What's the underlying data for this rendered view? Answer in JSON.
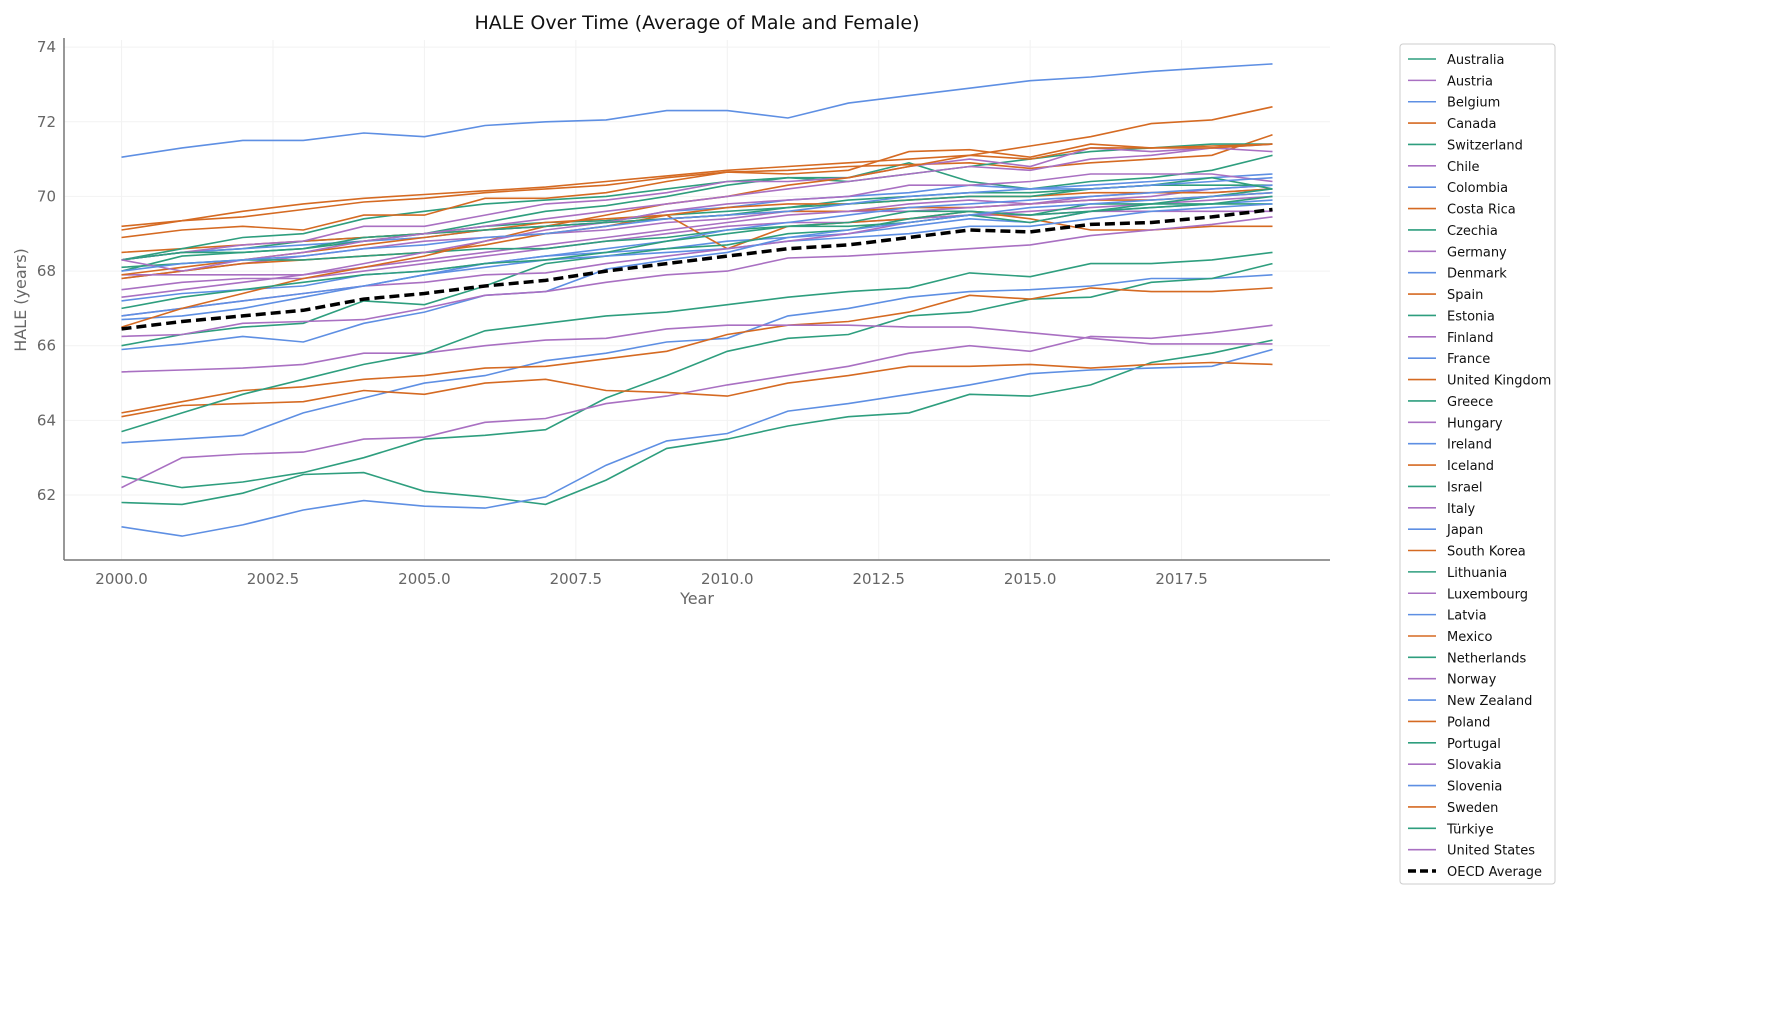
{
  "chart_data": {
    "type": "line",
    "title": "HALE Over Time (Average of Male and Female)",
    "xlabel": "Year",
    "ylabel": "HALE (years)",
    "xlim": [
      1999.05,
      2019.95
    ],
    "ylim": [
      60.26,
      74.19
    ],
    "xticks": [
      "2000.0",
      "2002.5",
      "2005.0",
      "2007.5",
      "2010.0",
      "2012.5",
      "2015.0",
      "2017.5"
    ],
    "yticks": [
      "62",
      "64",
      "66",
      "68",
      "70",
      "72",
      "74"
    ],
    "grid": true,
    "legend_placement": "outside-right",
    "palette": [
      "#2e9e7e",
      "#a970c2",
      "#5e8fe3",
      "#d56a22"
    ],
    "x": [
      2000,
      2001,
      2002,
      2003,
      2004,
      2005,
      2006,
      2007,
      2008,
      2009,
      2010,
      2011,
      2012,
      2013,
      2014,
      2015,
      2016,
      2017,
      2018,
      2019
    ],
    "series": [
      {
        "name": "Australia",
        "values": [
          68.3,
          68.5,
          68.6,
          68.8,
          68.9,
          69.0,
          69.2,
          69.3,
          69.35,
          69.5,
          69.6,
          69.7,
          69.9,
          70.0,
          70.1,
          70.1,
          70.2,
          70.3,
          70.3,
          70.3
        ]
      },
      {
        "name": "Austria",
        "values": [
          67.8,
          68.0,
          68.2,
          68.4,
          68.6,
          68.8,
          68.9,
          69.0,
          69.1,
          69.3,
          69.4,
          69.6,
          69.6,
          69.8,
          69.9,
          69.8,
          70.0,
          70.1,
          70.1,
          70.2
        ]
      },
      {
        "name": "Belgium",
        "values": [
          67.2,
          67.4,
          67.5,
          67.6,
          67.9,
          68.0,
          68.2,
          68.4,
          68.5,
          68.6,
          68.8,
          68.9,
          69.0,
          69.2,
          69.4,
          69.3,
          69.6,
          69.7,
          69.8,
          69.9
        ]
      },
      {
        "name": "Canada",
        "values": [
          68.5,
          68.6,
          68.7,
          68.8,
          68.9,
          69.0,
          69.1,
          69.2,
          69.3,
          69.4,
          69.5,
          69.6,
          69.6,
          69.7,
          69.7,
          69.8,
          69.9,
          69.9,
          70.0,
          70.1
        ]
      },
      {
        "name": "Switzerland",
        "values": [
          68.3,
          68.6,
          68.9,
          69.0,
          69.4,
          69.6,
          69.8,
          69.9,
          70.0,
          70.2,
          70.4,
          70.5,
          70.5,
          70.9,
          70.4,
          70.2,
          70.4,
          70.5,
          70.7,
          71.1
        ]
      },
      {
        "name": "Chile",
        "values": [
          67.5,
          67.7,
          67.8,
          67.8,
          68.0,
          68.2,
          68.4,
          68.6,
          68.8,
          69.0,
          69.2,
          69.3,
          69.3,
          69.4,
          69.5,
          69.5,
          69.6,
          69.6,
          69.6,
          69.6
        ]
      },
      {
        "name": "Colombia",
        "values": [
          63.4,
          63.5,
          63.6,
          64.2,
          64.6,
          65.0,
          65.2,
          65.6,
          65.8,
          66.1,
          66.2,
          66.8,
          67.0,
          67.3,
          67.45,
          67.5,
          67.6,
          67.8,
          67.8,
          67.9
        ]
      },
      {
        "name": "Costa Rica",
        "values": [
          67.8,
          68.0,
          68.2,
          68.3,
          68.4,
          68.5,
          68.7,
          69.0,
          69.2,
          69.5,
          68.6,
          69.2,
          69.3,
          69.4,
          69.6,
          69.4,
          69.1,
          69.1,
          69.2,
          69.2
        ]
      },
      {
        "name": "Czechia",
        "values": [
          66.0,
          66.3,
          66.5,
          66.6,
          67.2,
          67.1,
          67.6,
          68.2,
          68.4,
          68.6,
          68.7,
          69.0,
          69.1,
          69.4,
          69.6,
          69.5,
          69.6,
          69.7,
          69.8,
          69.8
        ]
      },
      {
        "name": "Germany",
        "values": [
          67.9,
          67.9,
          67.9,
          67.9,
          68.1,
          68.3,
          68.5,
          68.7,
          68.9,
          69.1,
          69.3,
          69.5,
          69.6,
          69.6,
          69.7,
          69.8,
          69.9,
          70.0,
          70.2,
          70.3
        ]
      },
      {
        "name": "Denmark",
        "values": [
          66.7,
          66.8,
          67.0,
          67.3,
          67.6,
          67.9,
          68.1,
          68.3,
          68.4,
          68.5,
          68.6,
          68.8,
          68.9,
          69.0,
          69.2,
          69.2,
          69.4,
          69.6,
          69.7,
          69.8
        ]
      },
      {
        "name": "Spain",
        "values": [
          69.2,
          69.35,
          69.6,
          69.8,
          69.95,
          70.05,
          70.15,
          70.25,
          70.4,
          70.55,
          70.7,
          70.8,
          70.9,
          71.0,
          71.1,
          71.35,
          71.6,
          71.95,
          72.05,
          72.4
        ]
      },
      {
        "name": "Estonia",
        "values": [
          62.5,
          62.2,
          62.35,
          62.6,
          63.0,
          63.5,
          63.6,
          63.75,
          64.6,
          65.2,
          65.85,
          66.2,
          66.3,
          66.8,
          66.9,
          67.25,
          67.3,
          67.7,
          67.8,
          68.2
        ]
      },
      {
        "name": "Finland",
        "values": [
          66.8,
          67.0,
          67.2,
          67.4,
          67.6,
          67.7,
          67.9,
          67.95,
          68.2,
          68.4,
          68.6,
          68.8,
          69.0,
          69.3,
          69.5,
          69.6,
          69.7,
          69.8,
          69.9,
          70.0
        ]
      },
      {
        "name": "France",
        "values": [
          68.3,
          68.5,
          68.6,
          68.7,
          68.8,
          68.9,
          69.1,
          69.2,
          69.3,
          69.6,
          69.7,
          69.9,
          70.0,
          70.1,
          70.3,
          70.2,
          70.3,
          70.4,
          70.5,
          70.6
        ]
      },
      {
        "name": "United Kingdom",
        "values": [
          67.9,
          68.1,
          68.3,
          68.5,
          68.7,
          68.9,
          69.1,
          69.3,
          69.4,
          69.5,
          69.7,
          69.8,
          69.8,
          69.9,
          70.0,
          70.0,
          70.1,
          70.1,
          70.1,
          70.2
        ]
      },
      {
        "name": "Greece",
        "values": [
          68.1,
          68.2,
          68.3,
          68.3,
          68.4,
          68.5,
          68.6,
          68.6,
          68.8,
          68.9,
          69.1,
          69.2,
          69.2,
          69.3,
          69.5,
          69.3,
          69.6,
          69.8,
          70.0,
          70.2
        ]
      },
      {
        "name": "Hungary",
        "values": [
          62.2,
          63.0,
          63.1,
          63.15,
          63.5,
          63.55,
          63.95,
          64.05,
          64.45,
          64.65,
          64.95,
          65.2,
          65.45,
          65.8,
          66.0,
          65.85,
          66.25,
          66.2,
          66.35,
          66.55
        ]
      },
      {
        "name": "Ireland",
        "values": [
          66.8,
          67.0,
          67.2,
          67.4,
          67.6,
          67.9,
          68.2,
          68.4,
          68.6,
          68.8,
          69.1,
          69.3,
          69.5,
          69.7,
          69.8,
          69.9,
          70.0,
          70.1,
          70.2,
          70.3
        ]
      },
      {
        "name": "Iceland",
        "values": [
          69.1,
          69.35,
          69.45,
          69.65,
          69.85,
          69.95,
          70.1,
          70.2,
          70.3,
          70.5,
          70.65,
          70.7,
          70.8,
          70.85,
          70.9,
          70.75,
          70.9,
          71.0,
          71.1,
          71.65
        ]
      },
      {
        "name": "Israel",
        "values": [
          68.0,
          68.4,
          68.5,
          68.6,
          68.9,
          69.0,
          69.3,
          69.6,
          69.75,
          70.0,
          70.3,
          70.5,
          70.4,
          70.6,
          70.8,
          71.0,
          71.2,
          71.3,
          71.4,
          71.4
        ]
      },
      {
        "name": "Italy",
        "values": [
          68.3,
          68.5,
          68.7,
          68.8,
          69.2,
          69.2,
          69.5,
          69.8,
          69.9,
          70.1,
          70.4,
          70.4,
          70.5,
          70.8,
          71.0,
          70.8,
          71.3,
          71.2,
          71.3,
          71.4
        ]
      },
      {
        "name": "Japan",
        "values": [
          71.05,
          71.3,
          71.5,
          71.5,
          71.7,
          71.6,
          71.9,
          72.0,
          72.05,
          72.3,
          72.3,
          72.1,
          72.5,
          72.7,
          72.9,
          73.1,
          73.2,
          73.35,
          73.45,
          73.55
        ]
      },
      {
        "name": "South Korea",
        "values": [
          66.5,
          67.0,
          67.4,
          67.8,
          68.1,
          68.4,
          68.8,
          69.2,
          69.5,
          69.8,
          70.0,
          70.3,
          70.5,
          70.8,
          71.1,
          71.0,
          71.3,
          71.3,
          71.35,
          71.4
        ]
      },
      {
        "name": "Lithuania",
        "values": [
          61.8,
          61.75,
          62.05,
          62.55,
          62.6,
          62.1,
          61.95,
          61.75,
          62.4,
          63.25,
          63.5,
          63.85,
          64.1,
          64.2,
          64.7,
          64.65,
          64.95,
          65.55,
          65.8,
          66.15
        ]
      },
      {
        "name": "Luxembourg",
        "values": [
          67.3,
          67.5,
          67.7,
          67.9,
          68.2,
          68.5,
          68.8,
          69.1,
          69.3,
          69.6,
          69.8,
          69.9,
          70.0,
          70.3,
          70.3,
          70.4,
          70.6,
          70.6,
          70.6,
          70.4
        ]
      },
      {
        "name": "Latvia",
        "values": [
          61.15,
          60.9,
          61.2,
          61.6,
          61.85,
          61.7,
          61.65,
          61.95,
          62.8,
          63.45,
          63.65,
          64.25,
          64.45,
          64.7,
          64.95,
          65.25,
          65.35,
          65.4,
          65.45,
          65.9
        ]
      },
      {
        "name": "Mexico",
        "values": [
          64.1,
          64.4,
          64.45,
          64.5,
          64.8,
          64.7,
          65.0,
          65.1,
          64.8,
          64.75,
          64.65,
          65.0,
          65.2,
          65.45,
          65.45,
          65.5,
          65.4,
          65.5,
          65.55,
          65.5
        ]
      },
      {
        "name": "Netherlands",
        "values": [
          68.3,
          68.5,
          68.5,
          68.6,
          68.8,
          69.0,
          69.1,
          69.2,
          69.3,
          69.4,
          69.5,
          69.7,
          69.8,
          69.9,
          70.0,
          70.0,
          70.2,
          70.3,
          70.5,
          70.2
        ]
      },
      {
        "name": "Norway",
        "values": [
          68.3,
          68.0,
          68.3,
          68.5,
          68.8,
          69.0,
          69.2,
          69.4,
          69.6,
          69.8,
          70.0,
          70.2,
          70.4,
          70.6,
          70.8,
          70.7,
          71.0,
          71.1,
          71.3,
          71.2
        ]
      },
      {
        "name": "New Zealand",
        "values": [
          68.0,
          68.2,
          68.3,
          68.4,
          68.6,
          68.7,
          68.9,
          69.0,
          69.2,
          69.4,
          69.5,
          69.6,
          69.8,
          70.0,
          70.1,
          70.2,
          70.2,
          70.3,
          70.4,
          70.5
        ]
      },
      {
        "name": "Poland",
        "values": [
          64.2,
          64.5,
          64.8,
          64.9,
          65.1,
          65.2,
          65.4,
          65.45,
          65.65,
          65.85,
          66.3,
          66.55,
          66.65,
          66.9,
          67.35,
          67.25,
          67.55,
          67.45,
          67.45,
          67.55
        ]
      },
      {
        "name": "Portugal",
        "values": [
          67.0,
          67.3,
          67.5,
          67.7,
          67.9,
          68.0,
          68.2,
          68.3,
          68.5,
          68.8,
          69.0,
          69.2,
          69.3,
          69.6,
          69.6,
          69.5,
          69.8,
          69.8,
          69.8,
          70.0
        ]
      },
      {
        "name": "Slovakia",
        "values": [
          65.3,
          65.35,
          65.4,
          65.5,
          65.8,
          65.8,
          66.0,
          66.15,
          66.2,
          66.45,
          66.55,
          66.55,
          66.55,
          66.5,
          66.5,
          66.35,
          66.2,
          66.05,
          66.05,
          66.05
        ]
      },
      {
        "name": "Slovenia",
        "values": [
          65.9,
          66.05,
          66.25,
          66.1,
          66.6,
          66.9,
          67.35,
          67.45,
          68.05,
          68.3,
          68.5,
          68.9,
          69.1,
          69.3,
          69.5,
          69.7,
          69.8,
          69.9,
          70.0,
          70.1
        ]
      },
      {
        "name": "Sweden",
        "values": [
          68.9,
          69.1,
          69.2,
          69.1,
          69.5,
          69.5,
          69.95,
          69.95,
          70.1,
          70.4,
          70.65,
          70.6,
          70.7,
          71.2,
          71.25,
          71.05,
          71.4,
          71.3,
          71.3,
          71.4
        ]
      },
      {
        "name": "Türkiye",
        "values": [
          63.7,
          64.2,
          64.7,
          65.1,
          65.5,
          65.8,
          66.4,
          66.6,
          66.8,
          66.9,
          67.1,
          67.3,
          67.45,
          67.55,
          67.95,
          67.85,
          68.2,
          68.2,
          68.3,
          68.5
        ]
      },
      {
        "name": "United States",
        "values": [
          66.25,
          66.3,
          66.6,
          66.65,
          66.7,
          67.0,
          67.35,
          67.45,
          67.7,
          67.9,
          68.0,
          68.35,
          68.4,
          68.5,
          68.6,
          68.7,
          68.95,
          69.1,
          69.25,
          69.45
        ]
      },
      {
        "name": "OECD Average",
        "style": "dashed",
        "color": "#000000",
        "values": [
          66.45,
          66.65,
          66.8,
          66.95,
          67.25,
          67.4,
          67.6,
          67.75,
          68.0,
          68.2,
          68.4,
          68.6,
          68.7,
          68.9,
          69.1,
          69.05,
          69.25,
          69.3,
          69.45,
          69.65
        ]
      }
    ]
  }
}
